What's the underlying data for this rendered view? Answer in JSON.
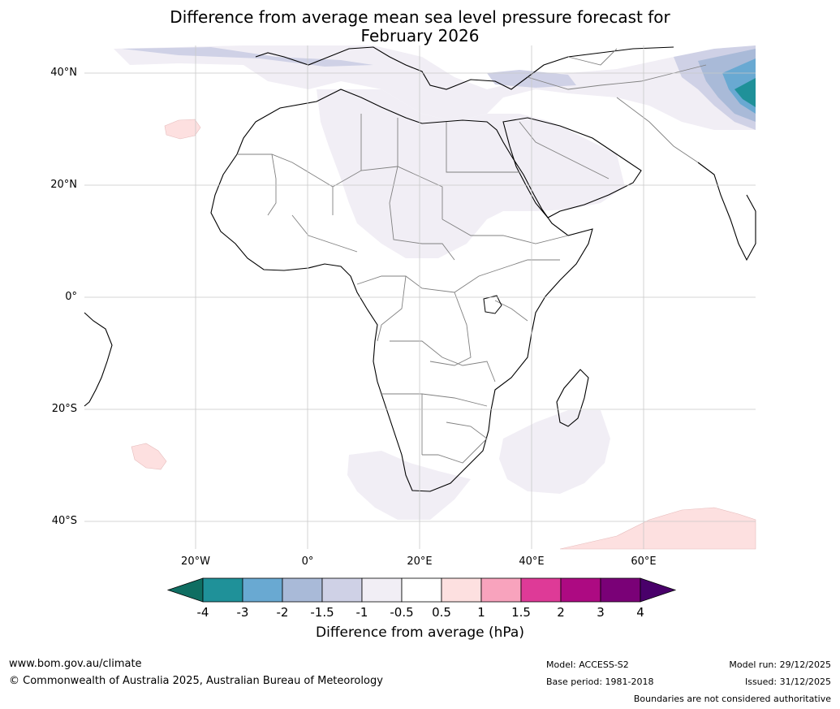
{
  "title": {
    "line1": "Difference from average mean sea level pressure forecast for",
    "line2": "February 2026"
  },
  "map": {
    "lat_ticks": [
      "40°N",
      "20°N",
      "0°",
      "20°S",
      "40°S"
    ],
    "lon_ticks": [
      "20°W",
      "0°",
      "20°E",
      "40°E",
      "60°E"
    ],
    "colors": {
      "land_bg": "#ffffff",
      "grid": "#c8c8c8",
      "coast": "#000000",
      "border": "#808080"
    }
  },
  "colorbar": {
    "labels": [
      "-4",
      "-3",
      "-2",
      "-1.5",
      "-1",
      "-0.5",
      "0.5",
      "1",
      "1.5",
      "2",
      "3",
      "4"
    ],
    "colors": [
      "#0f6e62",
      "#1f9199",
      "#69a9d2",
      "#a9bad8",
      "#cfd1e6",
      "#f1eef5",
      "#ffffff",
      "#fde0e0",
      "#f8a3bd",
      "#de3a97",
      "#ad0a82",
      "#7a0177",
      "#49006a"
    ],
    "title": "Difference from average (hPa)"
  },
  "footer": {
    "website": "www.bom.gov.au/climate",
    "copyright": "© Commonwealth of Australia 2025, Australian Bureau of Meteorology",
    "model": "Model: ACCESS-S2",
    "base_period": "Base period: 1981-2018",
    "model_run": "Model run: 29/12/2025",
    "issued": "Issued: 31/12/2025",
    "disclaimer": "Boundaries are not considered authoritative"
  }
}
